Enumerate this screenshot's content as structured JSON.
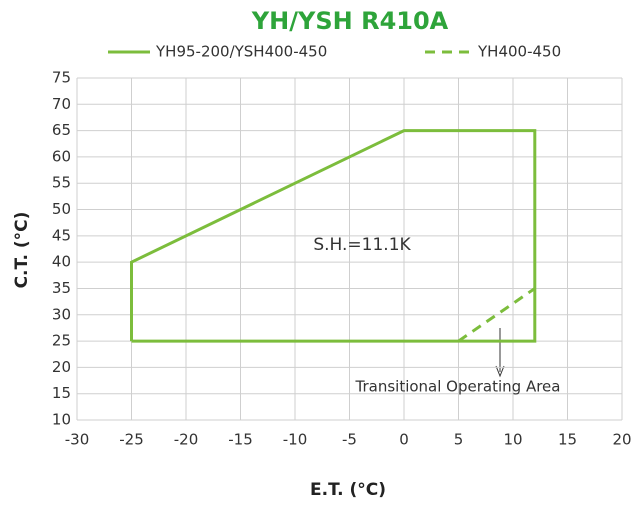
{
  "chart_data": {
    "type": "line",
    "title": "YH/YSH R410A",
    "xlabel": "E.T. (°C)",
    "ylabel": "C.T. (°C)",
    "series": [
      {
        "name": "YH95-200/YSH400-450",
        "color": "#7cbd3c",
        "style": "solid",
        "x": [
          -25,
          -25,
          0,
          12,
          12,
          -25
        ],
        "values": [
          25,
          40,
          65,
          65,
          25,
          25
        ]
      },
      {
        "name": "YH400-450",
        "color": "#7cbd3c",
        "style": "dashed",
        "x": [
          5,
          12
        ],
        "values": [
          25,
          35
        ]
      }
    ],
    "annotations": [
      "S.H.=11.1K",
      "Transitional Operating Area"
    ],
    "xlim": [
      -30,
      20
    ],
    "xticks": [
      -30,
      -25,
      -20,
      -15,
      -10,
      -5,
      0,
      5,
      10,
      15,
      20
    ],
    "ylim": [
      10,
      75
    ],
    "yticks": [
      10,
      15,
      20,
      25,
      30,
      35,
      40,
      45,
      50,
      55,
      60,
      65,
      70,
      75
    ],
    "grid": true
  }
}
